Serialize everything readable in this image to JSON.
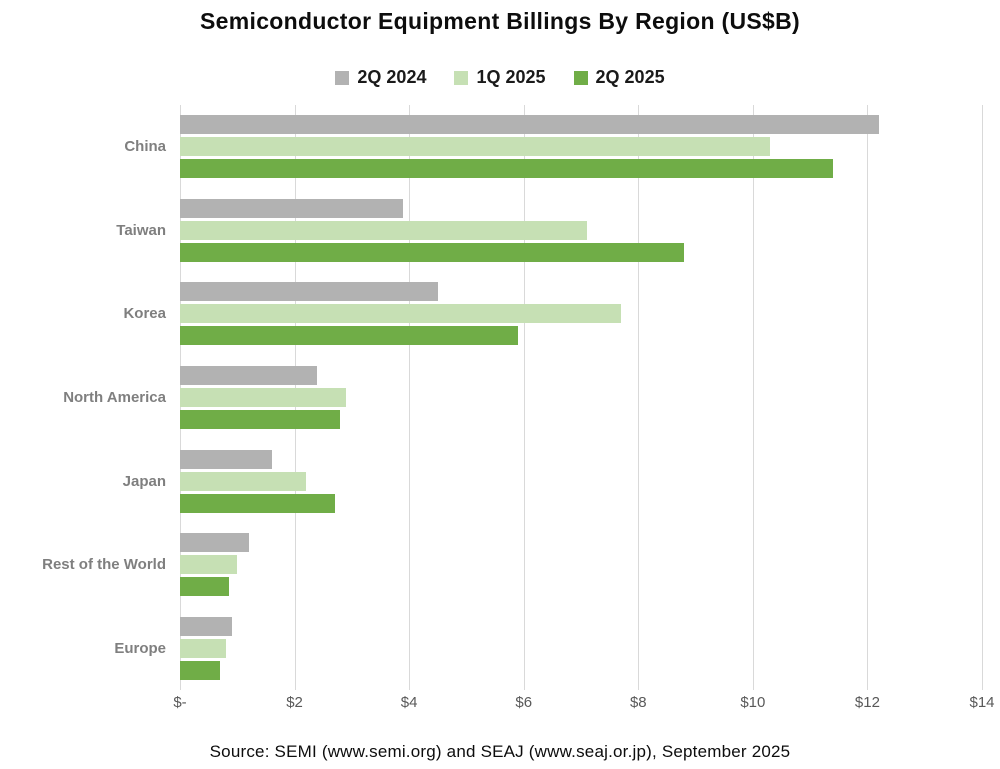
{
  "title": "Semiconductor Equipment Billings By Region (US$B)",
  "source": "Source: SEMI (www.semi.org) and SEAJ (www.seaj.or.jp), September 2025",
  "colors": {
    "series_gray": "#b2b2b2",
    "series_light_green": "#c6e0b4",
    "series_dark_green": "#70ad47",
    "gridline": "#d9d9d9"
  },
  "chart_data": {
    "type": "bar",
    "orientation": "horizontal",
    "title": "Semiconductor Equipment Billings By Region (US$B)",
    "xlabel": "",
    "ylabel": "",
    "grid": true,
    "legend_position": "top",
    "xlim": [
      0,
      14
    ],
    "xticks": [
      0,
      2,
      4,
      6,
      8,
      10,
      12,
      14
    ],
    "xtick_labels": [
      "$-",
      "$2",
      "$4",
      "$6",
      "$8",
      "$10",
      "$12",
      "$14"
    ],
    "categories": [
      "China",
      "Taiwan",
      "Korea",
      "North America",
      "Japan",
      "Rest of the World",
      "Europe"
    ],
    "series": [
      {
        "name": "2Q 2024",
        "color": "#b2b2b2",
        "values": [
          12.2,
          3.9,
          4.5,
          2.4,
          1.6,
          1.2,
          0.9
        ]
      },
      {
        "name": "1Q 2025",
        "color": "#c6e0b4",
        "values": [
          10.3,
          7.1,
          7.7,
          2.9,
          2.2,
          1.0,
          0.8
        ]
      },
      {
        "name": "2Q 2025",
        "color": "#70ad47",
        "values": [
          11.4,
          8.8,
          5.9,
          2.8,
          2.7,
          0.85,
          0.7
        ]
      }
    ]
  }
}
